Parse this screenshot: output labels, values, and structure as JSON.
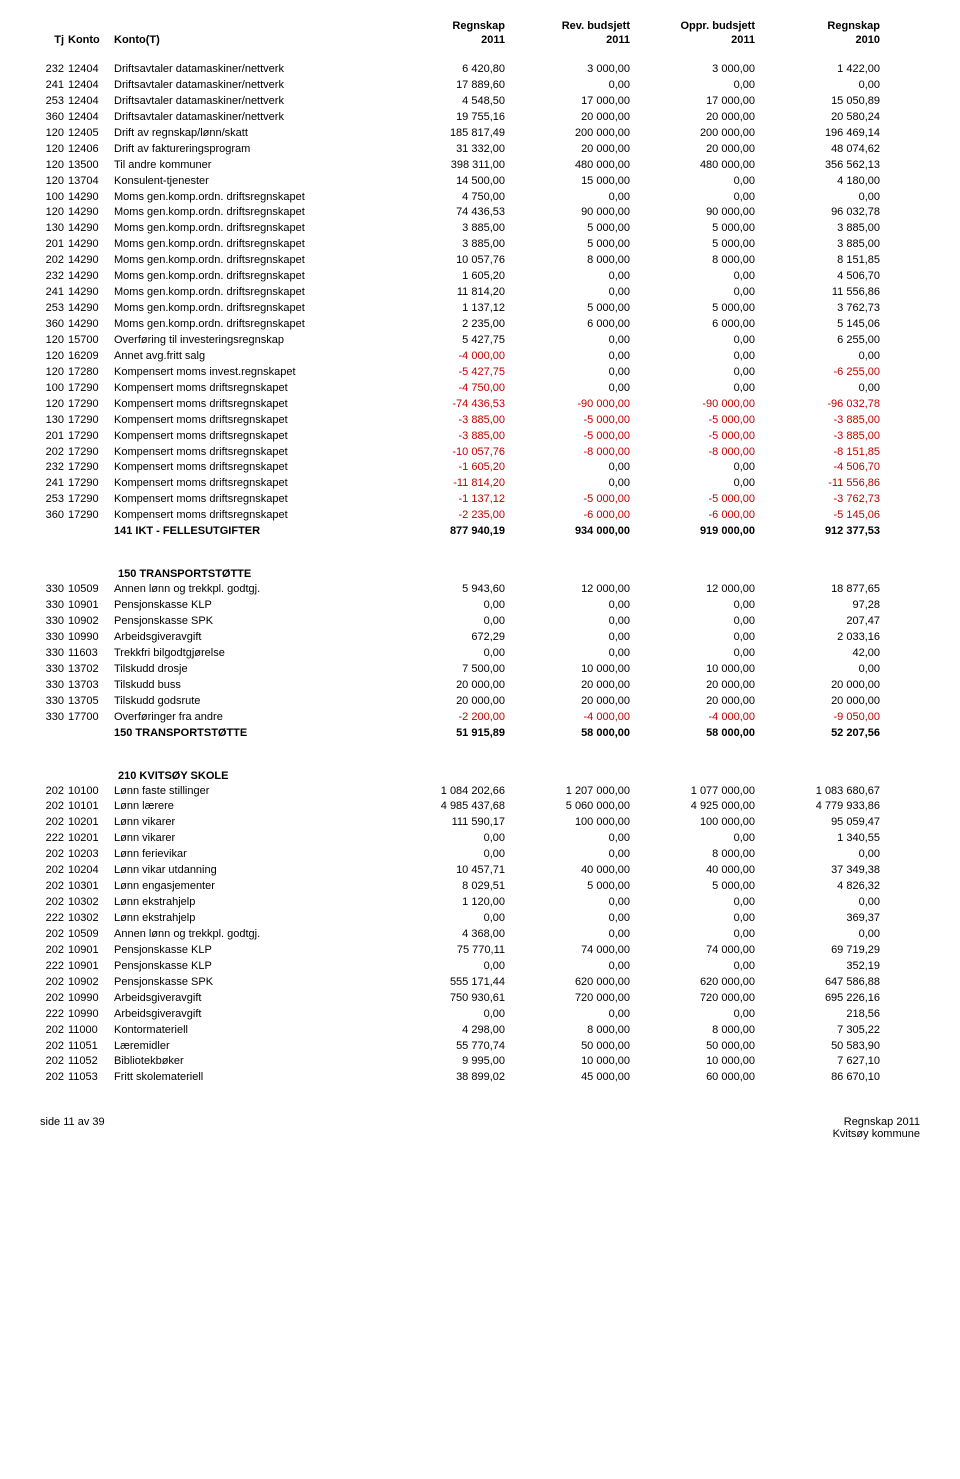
{
  "headers": {
    "top": {
      "c1": "Regnskap",
      "c2": "Rev. budsjett",
      "c3": "Oppr. budsjett",
      "c4": "Regnskap"
    },
    "bottom": {
      "tj": "Tj",
      "konto": "Konto",
      "kontot": "Konto(T)",
      "c1": "2011",
      "c2": "2011",
      "c3": "2011",
      "c4": "2010"
    }
  },
  "sections": [
    {
      "rows": [
        {
          "tj": "232",
          "konto": "12404",
          "name": "Driftsavtaler datamaskiner/nettverk",
          "v": [
            "6 420,80",
            "3 000,00",
            "3 000,00",
            "1 422,00"
          ]
        },
        {
          "tj": "241",
          "konto": "12404",
          "name": "Driftsavtaler datamaskiner/nettverk",
          "v": [
            "17 889,60",
            "0,00",
            "0,00",
            "0,00"
          ]
        },
        {
          "tj": "253",
          "konto": "12404",
          "name": "Driftsavtaler datamaskiner/nettverk",
          "v": [
            "4 548,50",
            "17 000,00",
            "17 000,00",
            "15 050,89"
          ]
        },
        {
          "tj": "360",
          "konto": "12404",
          "name": "Driftsavtaler datamaskiner/nettverk",
          "v": [
            "19 755,16",
            "20 000,00",
            "20 000,00",
            "20 580,24"
          ]
        },
        {
          "tj": "120",
          "konto": "12405",
          "name": "Drift av regnskap/lønn/skatt",
          "v": [
            "185 817,49",
            "200 000,00",
            "200 000,00",
            "196 469,14"
          ]
        },
        {
          "tj": "120",
          "konto": "12406",
          "name": "Drift av faktureringsprogram",
          "v": [
            "31 332,00",
            "20 000,00",
            "20 000,00",
            "48 074,62"
          ]
        },
        {
          "tj": "120",
          "konto": "13500",
          "name": "Til andre kommuner",
          "v": [
            "398 311,00",
            "480 000,00",
            "480 000,00",
            "356 562,13"
          ]
        },
        {
          "tj": "120",
          "konto": "13704",
          "name": "Konsulent-tjenester",
          "v": [
            "14 500,00",
            "15 000,00",
            "0,00",
            "4 180,00"
          ]
        },
        {
          "tj": "100",
          "konto": "14290",
          "name": "Moms gen.komp.ordn. driftsregnskapet",
          "v": [
            "4 750,00",
            "0,00",
            "0,00",
            "0,00"
          ]
        },
        {
          "tj": "120",
          "konto": "14290",
          "name": "Moms gen.komp.ordn. driftsregnskapet",
          "v": [
            "74 436,53",
            "90 000,00",
            "90 000,00",
            "96 032,78"
          ]
        },
        {
          "tj": "130",
          "konto": "14290",
          "name": "Moms gen.komp.ordn. driftsregnskapet",
          "v": [
            "3 885,00",
            "5 000,00",
            "5 000,00",
            "3 885,00"
          ]
        },
        {
          "tj": "201",
          "konto": "14290",
          "name": "Moms gen.komp.ordn. driftsregnskapet",
          "v": [
            "3 885,00",
            "5 000,00",
            "5 000,00",
            "3 885,00"
          ]
        },
        {
          "tj": "202",
          "konto": "14290",
          "name": "Moms gen.komp.ordn. driftsregnskapet",
          "v": [
            "10 057,76",
            "8 000,00",
            "8 000,00",
            "8 151,85"
          ]
        },
        {
          "tj": "232",
          "konto": "14290",
          "name": "Moms gen.komp.ordn. driftsregnskapet",
          "v": [
            "1 605,20",
            "0,00",
            "0,00",
            "4 506,70"
          ]
        },
        {
          "tj": "241",
          "konto": "14290",
          "name": "Moms gen.komp.ordn. driftsregnskapet",
          "v": [
            "11 814,20",
            "0,00",
            "0,00",
            "11 556,86"
          ]
        },
        {
          "tj": "253",
          "konto": "14290",
          "name": "Moms gen.komp.ordn. driftsregnskapet",
          "v": [
            "1 137,12",
            "5 000,00",
            "5 000,00",
            "3 762,73"
          ]
        },
        {
          "tj": "360",
          "konto": "14290",
          "name": "Moms gen.komp.ordn. driftsregnskapet",
          "v": [
            "2 235,00",
            "6 000,00",
            "6 000,00",
            "5 145,06"
          ]
        },
        {
          "tj": "120",
          "konto": "15700",
          "name": "Overføring til investeringsregnskap",
          "v": [
            "5 427,75",
            "0,00",
            "0,00",
            "6 255,00"
          ]
        },
        {
          "tj": "120",
          "konto": "16209",
          "name": "Annet avg.fritt salg",
          "v": [
            "-4 000,00",
            "0,00",
            "0,00",
            "0,00"
          ]
        },
        {
          "tj": "120",
          "konto": "17280",
          "name": "Kompensert moms invest.regnskapet",
          "v": [
            "-5 427,75",
            "0,00",
            "0,00",
            "-6 255,00"
          ]
        },
        {
          "tj": "100",
          "konto": "17290",
          "name": "Kompensert moms driftsregnskapet",
          "v": [
            "-4 750,00",
            "0,00",
            "0,00",
            "0,00"
          ]
        },
        {
          "tj": "120",
          "konto": "17290",
          "name": "Kompensert moms driftsregnskapet",
          "v": [
            "-74 436,53",
            "-90 000,00",
            "-90 000,00",
            "-96 032,78"
          ]
        },
        {
          "tj": "130",
          "konto": "17290",
          "name": "Kompensert moms driftsregnskapet",
          "v": [
            "-3 885,00",
            "-5 000,00",
            "-5 000,00",
            "-3 885,00"
          ]
        },
        {
          "tj": "201",
          "konto": "17290",
          "name": "Kompensert moms driftsregnskapet",
          "v": [
            "-3 885,00",
            "-5 000,00",
            "-5 000,00",
            "-3 885,00"
          ]
        },
        {
          "tj": "202",
          "konto": "17290",
          "name": "Kompensert moms driftsregnskapet",
          "v": [
            "-10 057,76",
            "-8 000,00",
            "-8 000,00",
            "-8 151,85"
          ]
        },
        {
          "tj": "232",
          "konto": "17290",
          "name": "Kompensert moms driftsregnskapet",
          "v": [
            "-1 605,20",
            "0,00",
            "0,00",
            "-4 506,70"
          ]
        },
        {
          "tj": "241",
          "konto": "17290",
          "name": "Kompensert moms driftsregnskapet",
          "v": [
            "-11 814,20",
            "0,00",
            "0,00",
            "-11 556,86"
          ]
        },
        {
          "tj": "253",
          "konto": "17290",
          "name": "Kompensert moms driftsregnskapet",
          "v": [
            "-1 137,12",
            "-5 000,00",
            "-5 000,00",
            "-3 762,73"
          ]
        },
        {
          "tj": "360",
          "konto": "17290",
          "name": "Kompensert moms driftsregnskapet",
          "v": [
            "-2 235,00",
            "-6 000,00",
            "-6 000,00",
            "-5 145,06"
          ]
        }
      ],
      "total": {
        "name": "141 IKT - FELLESUTGIFTER",
        "v": [
          "877 940,19",
          "934 000,00",
          "919 000,00",
          "912 377,53"
        ]
      }
    },
    {
      "title": "150 TRANSPORTSTØTTE",
      "rows": [
        {
          "tj": "330",
          "konto": "10509",
          "name": "Annen lønn og trekkpl. godtgj.",
          "v": [
            "5 943,60",
            "12 000,00",
            "12 000,00",
            "18 877,65"
          ]
        },
        {
          "tj": "330",
          "konto": "10901",
          "name": "Pensjonskasse KLP",
          "v": [
            "0,00",
            "0,00",
            "0,00",
            "97,28"
          ]
        },
        {
          "tj": "330",
          "konto": "10902",
          "name": "Pensjonskasse SPK",
          "v": [
            "0,00",
            "0,00",
            "0,00",
            "207,47"
          ]
        },
        {
          "tj": "330",
          "konto": "10990",
          "name": "Arbeidsgiveravgift",
          "v": [
            "672,29",
            "0,00",
            "0,00",
            "2 033,16"
          ]
        },
        {
          "tj": "330",
          "konto": "11603",
          "name": "Trekkfri bilgodtgjørelse",
          "v": [
            "0,00",
            "0,00",
            "0,00",
            "42,00"
          ]
        },
        {
          "tj": "330",
          "konto": "13702",
          "name": "Tilskudd drosje",
          "v": [
            "7 500,00",
            "10 000,00",
            "10 000,00",
            "0,00"
          ]
        },
        {
          "tj": "330",
          "konto": "13703",
          "name": "Tilskudd buss",
          "v": [
            "20 000,00",
            "20 000,00",
            "20 000,00",
            "20 000,00"
          ]
        },
        {
          "tj": "330",
          "konto": "13705",
          "name": "Tilskudd godsrute",
          "v": [
            "20 000,00",
            "20 000,00",
            "20 000,00",
            "20 000,00"
          ]
        },
        {
          "tj": "330",
          "konto": "17700",
          "name": "Overføringer fra andre",
          "v": [
            "-2 200,00",
            "-4 000,00",
            "-4 000,00",
            "-9 050,00"
          ]
        }
      ],
      "total": {
        "name": "150 TRANSPORTSTØTTE",
        "v": [
          "51 915,89",
          "58 000,00",
          "58 000,00",
          "52 207,56"
        ]
      }
    },
    {
      "title": "210 KVITSØY SKOLE",
      "rows": [
        {
          "tj": "202",
          "konto": "10100",
          "name": "Lønn faste stillinger",
          "v": [
            "1 084 202,66",
            "1 207 000,00",
            "1 077 000,00",
            "1 083 680,67"
          ]
        },
        {
          "tj": "202",
          "konto": "10101",
          "name": "Lønn lærere",
          "v": [
            "4 985 437,68",
            "5 060 000,00",
            "4 925 000,00",
            "4 779 933,86"
          ]
        },
        {
          "tj": "202",
          "konto": "10201",
          "name": "Lønn vikarer",
          "v": [
            "111 590,17",
            "100 000,00",
            "100 000,00",
            "95 059,47"
          ]
        },
        {
          "tj": "222",
          "konto": "10201",
          "name": "Lønn vikarer",
          "v": [
            "0,00",
            "0,00",
            "0,00",
            "1 340,55"
          ]
        },
        {
          "tj": "202",
          "konto": "10203",
          "name": "Lønn ferievikar",
          "v": [
            "0,00",
            "0,00",
            "8 000,00",
            "0,00"
          ]
        },
        {
          "tj": "202",
          "konto": "10204",
          "name": "Lønn vikar utdanning",
          "v": [
            "10 457,71",
            "40 000,00",
            "40 000,00",
            "37 349,38"
          ]
        },
        {
          "tj": "202",
          "konto": "10301",
          "name": "Lønn engasjementer",
          "v": [
            "8 029,51",
            "5 000,00",
            "5 000,00",
            "4 826,32"
          ]
        },
        {
          "tj": "202",
          "konto": "10302",
          "name": "Lønn ekstrahjelp",
          "v": [
            "1 120,00",
            "0,00",
            "0,00",
            "0,00"
          ]
        },
        {
          "tj": "222",
          "konto": "10302",
          "name": "Lønn ekstrahjelp",
          "v": [
            "0,00",
            "0,00",
            "0,00",
            "369,37"
          ]
        },
        {
          "tj": "202",
          "konto": "10509",
          "name": "Annen lønn og trekkpl. godtgj.",
          "v": [
            "4 368,00",
            "0,00",
            "0,00",
            "0,00"
          ]
        },
        {
          "tj": "202",
          "konto": "10901",
          "name": "Pensjonskasse KLP",
          "v": [
            "75 770,11",
            "74 000,00",
            "74 000,00",
            "69 719,29"
          ]
        },
        {
          "tj": "222",
          "konto": "10901",
          "name": "Pensjonskasse KLP",
          "v": [
            "0,00",
            "0,00",
            "0,00",
            "352,19"
          ]
        },
        {
          "tj": "202",
          "konto": "10902",
          "name": "Pensjonskasse SPK",
          "v": [
            "555 171,44",
            "620 000,00",
            "620 000,00",
            "647 586,88"
          ]
        },
        {
          "tj": "202",
          "konto": "10990",
          "name": "Arbeidsgiveravgift",
          "v": [
            "750 930,61",
            "720 000,00",
            "720 000,00",
            "695 226,16"
          ]
        },
        {
          "tj": "222",
          "konto": "10990",
          "name": "Arbeidsgiveravgift",
          "v": [
            "0,00",
            "0,00",
            "0,00",
            "218,56"
          ]
        },
        {
          "tj": "202",
          "konto": "11000",
          "name": "Kontormateriell",
          "v": [
            "4 298,00",
            "8 000,00",
            "8 000,00",
            "7 305,22"
          ]
        },
        {
          "tj": "202",
          "konto": "11051",
          "name": "Læremidler",
          "v": [
            "55 770,74",
            "50 000,00",
            "50 000,00",
            "50 583,90"
          ]
        },
        {
          "tj": "202",
          "konto": "11052",
          "name": "Bibliotekbøker",
          "v": [
            "9 995,00",
            "10 000,00",
            "10 000,00",
            "7 627,10"
          ]
        },
        {
          "tj": "202",
          "konto": "11053",
          "name": "Fritt skolemateriell",
          "v": [
            "38 899,02",
            "45 000,00",
            "60 000,00",
            "86 670,10"
          ]
        }
      ]
    }
  ],
  "footer": {
    "left": "side 11 av 39",
    "right1": "Regnskap 2011",
    "right2": "Kvitsøy kommune"
  }
}
